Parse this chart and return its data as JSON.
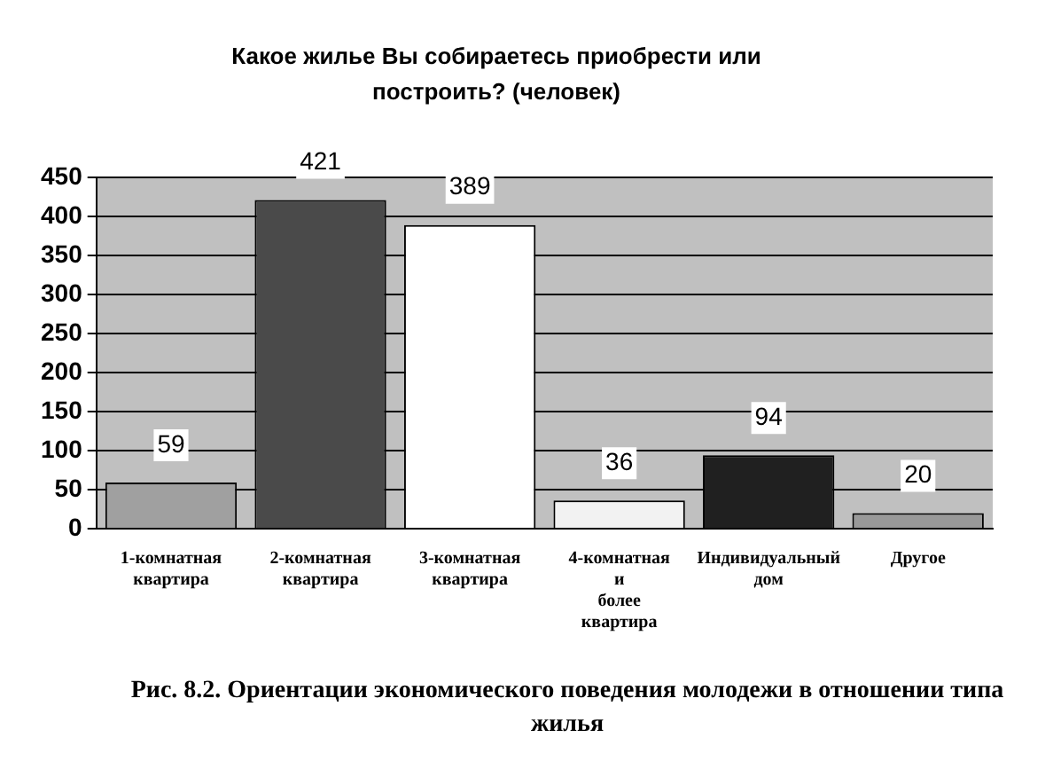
{
  "chart_data": {
    "type": "bar",
    "title": "Какое жилье Вы собираетесь приобрести или построить? (человек)",
    "categories": [
      "1-комнатная квартира",
      "2-комнатная квартира",
      "3-комнатная квартира",
      "4-комнатная и более квартира",
      "Индивидуальный дом",
      "Другое"
    ],
    "values": [
      59,
      421,
      389,
      36,
      94,
      20
    ],
    "colors": [
      "#a0a0a0",
      "#4a4a4a",
      "#ffffff",
      "#f2f2f2",
      "#202020",
      "#999999"
    ],
    "ylim": [
      0,
      450
    ],
    "yticks": [
      0,
      50,
      100,
      150,
      200,
      250,
      300,
      350,
      400,
      450
    ],
    "grid": "y",
    "data_labels": true,
    "annotations": [
      "Рис. 8.2. Ориентации экономического поведения молодежи в отношении типа жилья"
    ]
  }
}
